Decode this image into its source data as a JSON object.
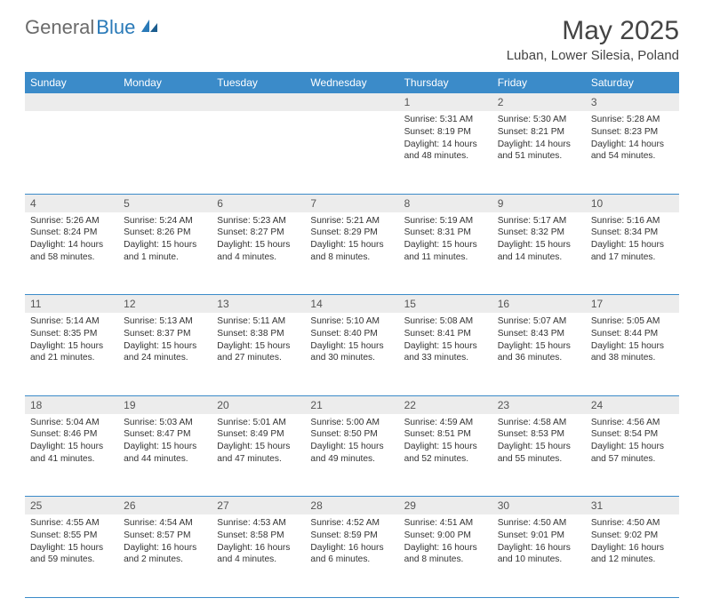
{
  "brand": {
    "part1": "General",
    "part2": "Blue"
  },
  "title": "May 2025",
  "location": "Luban, Lower Silesia, Poland",
  "colors": {
    "header_bg": "#3b8bc9",
    "header_text": "#ffffff",
    "daynum_bg": "#ececec",
    "row_border": "#3b8bc9",
    "text": "#333333",
    "logo_gray": "#6b6b6b",
    "logo_blue": "#2a7ab8"
  },
  "weekdays": [
    "Sunday",
    "Monday",
    "Tuesday",
    "Wednesday",
    "Thursday",
    "Friday",
    "Saturday"
  ],
  "weeks": [
    {
      "nums": [
        "",
        "",
        "",
        "",
        "1",
        "2",
        "3"
      ],
      "cells": [
        null,
        null,
        null,
        null,
        {
          "sunrise": "5:31 AM",
          "sunset": "8:19 PM",
          "daylight": "14 hours and 48 minutes."
        },
        {
          "sunrise": "5:30 AM",
          "sunset": "8:21 PM",
          "daylight": "14 hours and 51 minutes."
        },
        {
          "sunrise": "5:28 AM",
          "sunset": "8:23 PM",
          "daylight": "14 hours and 54 minutes."
        }
      ]
    },
    {
      "nums": [
        "4",
        "5",
        "6",
        "7",
        "8",
        "9",
        "10"
      ],
      "cells": [
        {
          "sunrise": "5:26 AM",
          "sunset": "8:24 PM",
          "daylight": "14 hours and 58 minutes."
        },
        {
          "sunrise": "5:24 AM",
          "sunset": "8:26 PM",
          "daylight": "15 hours and 1 minute."
        },
        {
          "sunrise": "5:23 AM",
          "sunset": "8:27 PM",
          "daylight": "15 hours and 4 minutes."
        },
        {
          "sunrise": "5:21 AM",
          "sunset": "8:29 PM",
          "daylight": "15 hours and 8 minutes."
        },
        {
          "sunrise": "5:19 AM",
          "sunset": "8:31 PM",
          "daylight": "15 hours and 11 minutes."
        },
        {
          "sunrise": "5:17 AM",
          "sunset": "8:32 PM",
          "daylight": "15 hours and 14 minutes."
        },
        {
          "sunrise": "5:16 AM",
          "sunset": "8:34 PM",
          "daylight": "15 hours and 17 minutes."
        }
      ]
    },
    {
      "nums": [
        "11",
        "12",
        "13",
        "14",
        "15",
        "16",
        "17"
      ],
      "cells": [
        {
          "sunrise": "5:14 AM",
          "sunset": "8:35 PM",
          "daylight": "15 hours and 21 minutes."
        },
        {
          "sunrise": "5:13 AM",
          "sunset": "8:37 PM",
          "daylight": "15 hours and 24 minutes."
        },
        {
          "sunrise": "5:11 AM",
          "sunset": "8:38 PM",
          "daylight": "15 hours and 27 minutes."
        },
        {
          "sunrise": "5:10 AM",
          "sunset": "8:40 PM",
          "daylight": "15 hours and 30 minutes."
        },
        {
          "sunrise": "5:08 AM",
          "sunset": "8:41 PM",
          "daylight": "15 hours and 33 minutes."
        },
        {
          "sunrise": "5:07 AM",
          "sunset": "8:43 PM",
          "daylight": "15 hours and 36 minutes."
        },
        {
          "sunrise": "5:05 AM",
          "sunset": "8:44 PM",
          "daylight": "15 hours and 38 minutes."
        }
      ]
    },
    {
      "nums": [
        "18",
        "19",
        "20",
        "21",
        "22",
        "23",
        "24"
      ],
      "cells": [
        {
          "sunrise": "5:04 AM",
          "sunset": "8:46 PM",
          "daylight": "15 hours and 41 minutes."
        },
        {
          "sunrise": "5:03 AM",
          "sunset": "8:47 PM",
          "daylight": "15 hours and 44 minutes."
        },
        {
          "sunrise": "5:01 AM",
          "sunset": "8:49 PM",
          "daylight": "15 hours and 47 minutes."
        },
        {
          "sunrise": "5:00 AM",
          "sunset": "8:50 PM",
          "daylight": "15 hours and 49 minutes."
        },
        {
          "sunrise": "4:59 AM",
          "sunset": "8:51 PM",
          "daylight": "15 hours and 52 minutes."
        },
        {
          "sunrise": "4:58 AM",
          "sunset": "8:53 PM",
          "daylight": "15 hours and 55 minutes."
        },
        {
          "sunrise": "4:56 AM",
          "sunset": "8:54 PM",
          "daylight": "15 hours and 57 minutes."
        }
      ]
    },
    {
      "nums": [
        "25",
        "26",
        "27",
        "28",
        "29",
        "30",
        "31"
      ],
      "cells": [
        {
          "sunrise": "4:55 AM",
          "sunset": "8:55 PM",
          "daylight": "15 hours and 59 minutes."
        },
        {
          "sunrise": "4:54 AM",
          "sunset": "8:57 PM",
          "daylight": "16 hours and 2 minutes."
        },
        {
          "sunrise": "4:53 AM",
          "sunset": "8:58 PM",
          "daylight": "16 hours and 4 minutes."
        },
        {
          "sunrise": "4:52 AM",
          "sunset": "8:59 PM",
          "daylight": "16 hours and 6 minutes."
        },
        {
          "sunrise": "4:51 AM",
          "sunset": "9:00 PM",
          "daylight": "16 hours and 8 minutes."
        },
        {
          "sunrise": "4:50 AM",
          "sunset": "9:01 PM",
          "daylight": "16 hours and 10 minutes."
        },
        {
          "sunrise": "4:50 AM",
          "sunset": "9:02 PM",
          "daylight": "16 hours and 12 minutes."
        }
      ]
    }
  ],
  "labels": {
    "sunrise": "Sunrise: ",
    "sunset": "Sunset: ",
    "daylight": "Daylight: "
  }
}
